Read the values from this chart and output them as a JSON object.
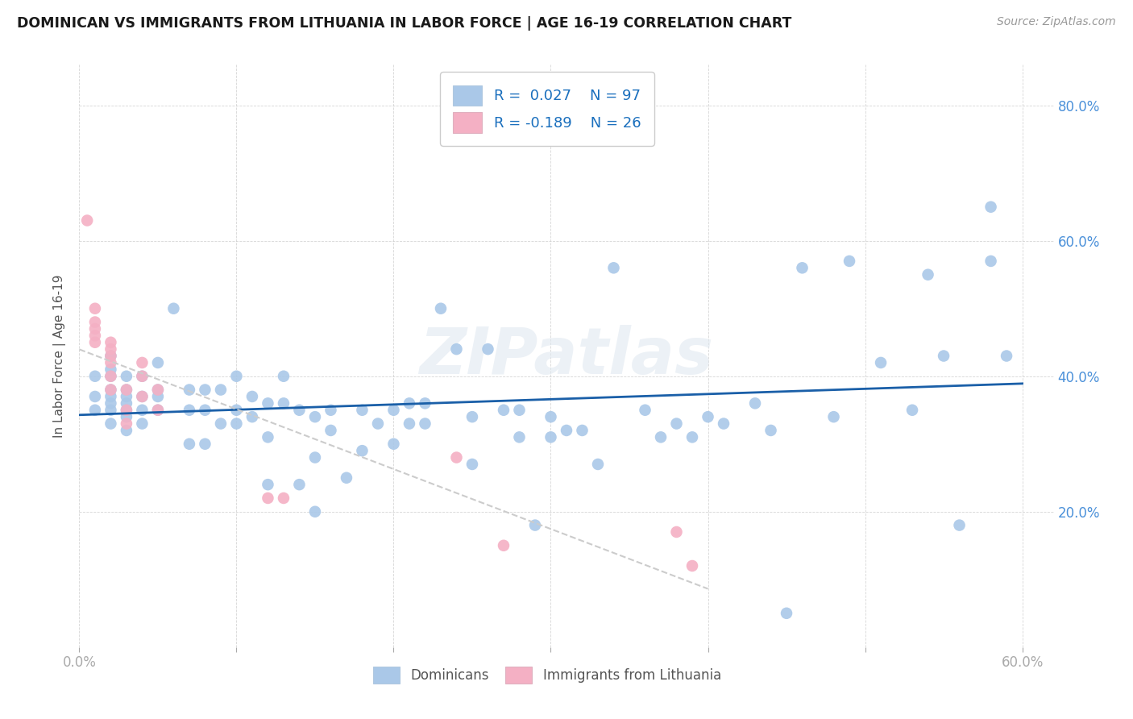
{
  "title": "DOMINICAN VS IMMIGRANTS FROM LITHUANIA IN LABOR FORCE | AGE 16-19 CORRELATION CHART",
  "source": "Source: ZipAtlas.com",
  "ylabel": "In Labor Force | Age 16-19",
  "xlim": [
    0.0,
    0.62
  ],
  "ylim": [
    0.0,
    0.86
  ],
  "x_ticks": [
    0.0,
    0.1,
    0.2,
    0.3,
    0.4,
    0.5,
    0.6
  ],
  "x_tick_labels": [
    "0.0%",
    "",
    "",
    "",
    "",
    "",
    "60.0%"
  ],
  "y_ticks": [
    0.0,
    0.2,
    0.4,
    0.6,
    0.8
  ],
  "y_tick_labels_right": [
    "",
    "20.0%",
    "40.0%",
    "60.0%",
    "80.0%"
  ],
  "blue_color": "#aac8e8",
  "blue_line_color": "#1a5fa8",
  "pink_color": "#f4b0c4",
  "watermark": "ZIPatlas",
  "legend_label1": "Dominicans",
  "legend_label2": "Immigrants from Lithuania",
  "R1": 0.027,
  "N1": 97,
  "R2": -0.189,
  "N2": 26,
  "blue_scatter_x": [
    0.01,
    0.01,
    0.01,
    0.02,
    0.02,
    0.02,
    0.02,
    0.02,
    0.02,
    0.02,
    0.02,
    0.03,
    0.03,
    0.03,
    0.03,
    0.03,
    0.03,
    0.03,
    0.04,
    0.04,
    0.04,
    0.04,
    0.05,
    0.05,
    0.05,
    0.05,
    0.06,
    0.07,
    0.07,
    0.07,
    0.08,
    0.08,
    0.08,
    0.09,
    0.09,
    0.1,
    0.1,
    0.1,
    0.11,
    0.11,
    0.12,
    0.12,
    0.12,
    0.13,
    0.13,
    0.14,
    0.14,
    0.15,
    0.15,
    0.15,
    0.16,
    0.16,
    0.17,
    0.18,
    0.18,
    0.19,
    0.2,
    0.2,
    0.21,
    0.21,
    0.22,
    0.22,
    0.23,
    0.24,
    0.25,
    0.25,
    0.26,
    0.27,
    0.28,
    0.28,
    0.29,
    0.3,
    0.3,
    0.31,
    0.32,
    0.33,
    0.34,
    0.36,
    0.37,
    0.38,
    0.39,
    0.4,
    0.41,
    0.43,
    0.44,
    0.45,
    0.46,
    0.48,
    0.49,
    0.51,
    0.53,
    0.54,
    0.55,
    0.56,
    0.58,
    0.58,
    0.59
  ],
  "blue_scatter_y": [
    0.35,
    0.37,
    0.4,
    0.33,
    0.35,
    0.36,
    0.37,
    0.38,
    0.4,
    0.41,
    0.43,
    0.32,
    0.34,
    0.35,
    0.36,
    0.37,
    0.38,
    0.4,
    0.33,
    0.35,
    0.37,
    0.4,
    0.35,
    0.37,
    0.38,
    0.42,
    0.5,
    0.3,
    0.35,
    0.38,
    0.3,
    0.35,
    0.38,
    0.33,
    0.38,
    0.33,
    0.35,
    0.4,
    0.34,
    0.37,
    0.24,
    0.31,
    0.36,
    0.36,
    0.4,
    0.24,
    0.35,
    0.2,
    0.28,
    0.34,
    0.32,
    0.35,
    0.25,
    0.29,
    0.35,
    0.33,
    0.3,
    0.35,
    0.33,
    0.36,
    0.33,
    0.36,
    0.5,
    0.44,
    0.27,
    0.34,
    0.44,
    0.35,
    0.31,
    0.35,
    0.18,
    0.31,
    0.34,
    0.32,
    0.32,
    0.27,
    0.56,
    0.35,
    0.31,
    0.33,
    0.31,
    0.34,
    0.33,
    0.36,
    0.32,
    0.05,
    0.56,
    0.34,
    0.57,
    0.42,
    0.35,
    0.55,
    0.43,
    0.18,
    0.65,
    0.57,
    0.43
  ],
  "pink_scatter_x": [
    0.005,
    0.01,
    0.01,
    0.01,
    0.01,
    0.01,
    0.02,
    0.02,
    0.02,
    0.02,
    0.02,
    0.02,
    0.03,
    0.03,
    0.03,
    0.04,
    0.04,
    0.04,
    0.05,
    0.05,
    0.12,
    0.13,
    0.24,
    0.27,
    0.38,
    0.39
  ],
  "pink_scatter_y": [
    0.63,
    0.45,
    0.46,
    0.47,
    0.48,
    0.5,
    0.38,
    0.4,
    0.42,
    0.43,
    0.44,
    0.45,
    0.33,
    0.35,
    0.38,
    0.37,
    0.4,
    0.42,
    0.35,
    0.38,
    0.22,
    0.22,
    0.28,
    0.15,
    0.17,
    0.12
  ]
}
